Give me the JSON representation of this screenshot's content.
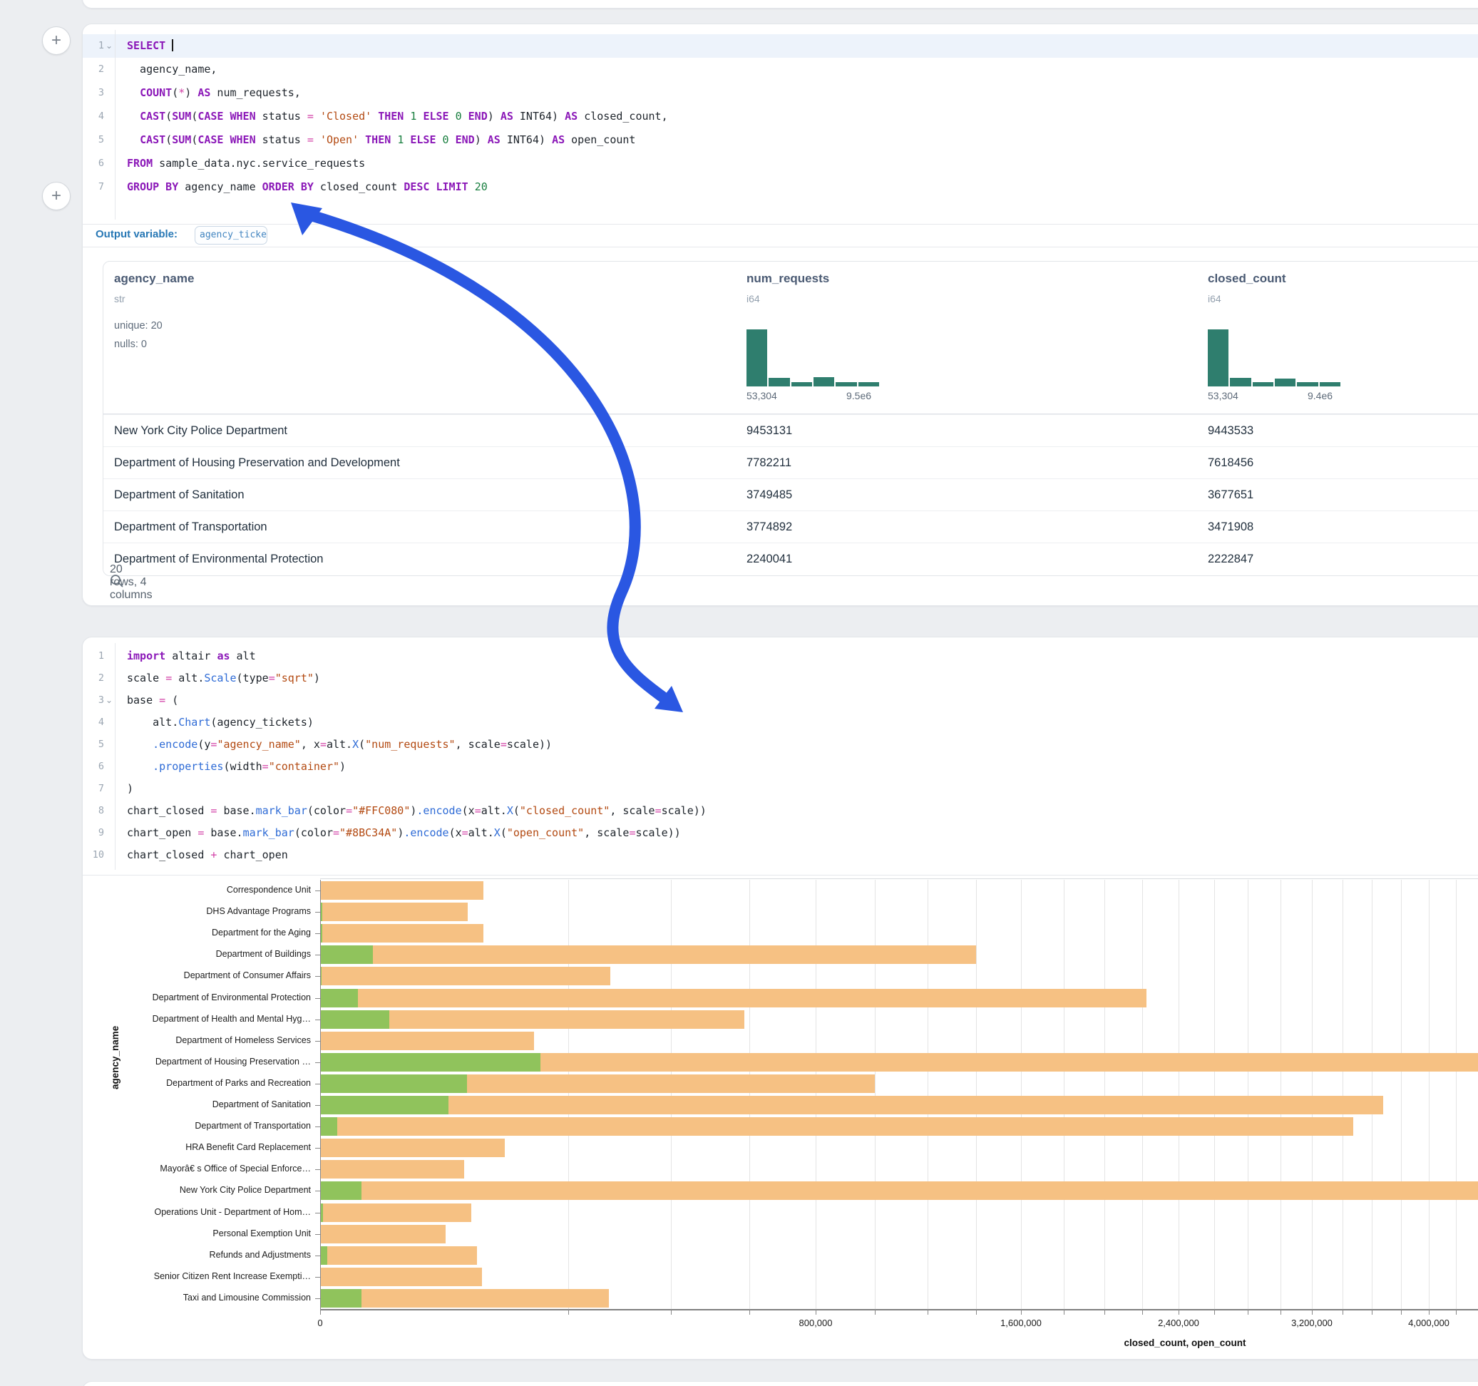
{
  "colors": {
    "closed_bar": "#F6C183",
    "open_bar": "#90C35C",
    "histogram": "#2F7E6E",
    "arrow": "#2A57E2",
    "keyword": "#8B18B8",
    "string": "#B34A12",
    "number": "#177E3E",
    "method": "#2E6BD6",
    "operator": "#D23FA6"
  },
  "sql_cell": {
    "add_cell_button": "+",
    "output_variable_label": "Output variable:",
    "output_variable": "agency_tickets",
    "lines": [
      {
        "n": "1",
        "chev": true,
        "active": true,
        "cursor": true,
        "tokens": [
          [
            "kw",
            "SELECT"
          ],
          [
            "t",
            " "
          ]
        ]
      },
      {
        "n": "2",
        "tokens": [
          [
            "t",
            "  agency_name,"
          ]
        ]
      },
      {
        "n": "3",
        "tokens": [
          [
            "t",
            "  "
          ],
          [
            "kw",
            "COUNT"
          ],
          [
            "t",
            "("
          ],
          [
            "op",
            "*"
          ],
          [
            "t",
            ") "
          ],
          [
            "kw",
            "AS"
          ],
          [
            "t",
            " num_requests,"
          ]
        ]
      },
      {
        "n": "4",
        "tokens": [
          [
            "t",
            "  "
          ],
          [
            "kw",
            "CAST"
          ],
          [
            "t",
            "("
          ],
          [
            "kw",
            "SUM"
          ],
          [
            "t",
            "("
          ],
          [
            "kw",
            "CASE"
          ],
          [
            "t",
            " "
          ],
          [
            "kw",
            "WHEN"
          ],
          [
            "t",
            " status "
          ],
          [
            "op",
            "="
          ],
          [
            "t",
            " "
          ],
          [
            "str",
            "'Closed'"
          ],
          [
            "t",
            " "
          ],
          [
            "kw",
            "THEN"
          ],
          [
            "t",
            " "
          ],
          [
            "num",
            "1"
          ],
          [
            "t",
            " "
          ],
          [
            "kw",
            "ELSE"
          ],
          [
            "t",
            " "
          ],
          [
            "num",
            "0"
          ],
          [
            "t",
            " "
          ],
          [
            "kw",
            "END"
          ],
          [
            "t",
            ") "
          ],
          [
            "kw",
            "AS"
          ],
          [
            "t",
            " INT64) "
          ],
          [
            "kw",
            "AS"
          ],
          [
            "t",
            " closed_count,"
          ]
        ]
      },
      {
        "n": "5",
        "tokens": [
          [
            "t",
            "  "
          ],
          [
            "kw",
            "CAST"
          ],
          [
            "t",
            "("
          ],
          [
            "kw",
            "SUM"
          ],
          [
            "t",
            "("
          ],
          [
            "kw",
            "CASE"
          ],
          [
            "t",
            " "
          ],
          [
            "kw",
            "WHEN"
          ],
          [
            "t",
            " status "
          ],
          [
            "op",
            "="
          ],
          [
            "t",
            " "
          ],
          [
            "str",
            "'Open'"
          ],
          [
            "t",
            " "
          ],
          [
            "kw",
            "THEN"
          ],
          [
            "t",
            " "
          ],
          [
            "num",
            "1"
          ],
          [
            "t",
            " "
          ],
          [
            "kw",
            "ELSE"
          ],
          [
            "t",
            " "
          ],
          [
            "num",
            "0"
          ],
          [
            "t",
            " "
          ],
          [
            "kw",
            "END"
          ],
          [
            "t",
            ") "
          ],
          [
            "kw",
            "AS"
          ],
          [
            "t",
            " INT64) "
          ],
          [
            "kw",
            "AS"
          ],
          [
            "t",
            " open_count"
          ]
        ]
      },
      {
        "n": "6",
        "tokens": [
          [
            "kw",
            "FROM"
          ],
          [
            "t",
            " sample_data.nyc.service_requests"
          ]
        ]
      },
      {
        "n": "7",
        "tokens": [
          [
            "kw",
            "GROUP BY"
          ],
          [
            "t",
            " agency_name "
          ],
          [
            "kw",
            "ORDER BY"
          ],
          [
            "t",
            " closed_count "
          ],
          [
            "kw",
            "DESC"
          ],
          [
            "t",
            " "
          ],
          [
            "kw",
            "LIMIT"
          ],
          [
            "t",
            " "
          ],
          [
            "num",
            "20"
          ]
        ]
      }
    ]
  },
  "table": {
    "columns": [
      {
        "name": "agency_name",
        "type": "str",
        "stats": [
          "unique: 20",
          "nulls: 0"
        ]
      },
      {
        "name": "num_requests",
        "type": "i64",
        "hist": {
          "bins": [
            1,
            0.15,
            0.08,
            0.16,
            0.08,
            0.08
          ],
          "min_label": "53,304",
          "max_label": "9.5e6"
        }
      },
      {
        "name": "closed_count",
        "type": "i64",
        "hist": {
          "bins": [
            1,
            0.15,
            0.08,
            0.14,
            0.07,
            0.07
          ],
          "min_label": "53,304",
          "max_label": "9.4e6"
        }
      }
    ],
    "rows": [
      {
        "agency_name": "New York City Police Department",
        "num_requests": "9453131",
        "closed_count": "9443533"
      },
      {
        "agency_name": "Department of Housing Preservation and Development",
        "num_requests": "7782211",
        "closed_count": "7618456"
      },
      {
        "agency_name": "Department of Sanitation",
        "num_requests": "3749485",
        "closed_count": "3677651"
      },
      {
        "agency_name": "Department of Transportation",
        "num_requests": "3774892",
        "closed_count": "3471908"
      },
      {
        "agency_name": "Department of Environmental Protection",
        "num_requests": "2240041",
        "closed_count": "2222847"
      }
    ],
    "footer": "20 rows, 4 columns"
  },
  "python_cell": {
    "add_cell_button": "+",
    "lines": [
      {
        "n": "1",
        "tokens": [
          [
            "kw",
            "import"
          ],
          [
            "t",
            " altair "
          ],
          [
            "kw",
            "as"
          ],
          [
            "t",
            " alt"
          ]
        ]
      },
      {
        "n": "2",
        "tokens": [
          [
            "t",
            "scale "
          ],
          [
            "op",
            "="
          ],
          [
            "t",
            " alt."
          ],
          [
            "fn",
            "Scale"
          ],
          [
            "t",
            "(type"
          ],
          [
            "op",
            "="
          ],
          [
            "str",
            "\"sqrt\""
          ],
          [
            "t",
            ")"
          ]
        ]
      },
      {
        "n": "3",
        "chev": true,
        "tokens": [
          [
            "t",
            "base "
          ],
          [
            "op",
            "="
          ],
          [
            "t",
            " ("
          ]
        ]
      },
      {
        "n": "4",
        "tokens": [
          [
            "t",
            "    alt."
          ],
          [
            "fn",
            "Chart"
          ],
          [
            "t",
            "(agency_tickets)"
          ]
        ]
      },
      {
        "n": "5",
        "tokens": [
          [
            "t",
            "    "
          ],
          [
            "fn",
            ".encode"
          ],
          [
            "t",
            "(y"
          ],
          [
            "op",
            "="
          ],
          [
            "str",
            "\"agency_name\""
          ],
          [
            "t",
            ", x"
          ],
          [
            "op",
            "="
          ],
          [
            "t",
            "alt."
          ],
          [
            "fn",
            "X"
          ],
          [
            "t",
            "("
          ],
          [
            "str",
            "\"num_requests\""
          ],
          [
            "t",
            ", scale"
          ],
          [
            "op",
            "="
          ],
          [
            "t",
            "scale))"
          ]
        ]
      },
      {
        "n": "6",
        "tokens": [
          [
            "t",
            "    "
          ],
          [
            "fn",
            ".properties"
          ],
          [
            "t",
            "(width"
          ],
          [
            "op",
            "="
          ],
          [
            "str",
            "\"container\""
          ],
          [
            "t",
            ")"
          ]
        ]
      },
      {
        "n": "7",
        "tokens": [
          [
            "t",
            ")"
          ]
        ]
      },
      {
        "n": "8",
        "tokens": [
          [
            "t",
            "chart_closed "
          ],
          [
            "op",
            "="
          ],
          [
            "t",
            " base."
          ],
          [
            "fn",
            "mark_bar"
          ],
          [
            "t",
            "(color"
          ],
          [
            "op",
            "="
          ],
          [
            "str",
            "\"#FFC080\""
          ],
          [
            "t",
            ")"
          ],
          [
            "fn",
            ".encode"
          ],
          [
            "t",
            "(x"
          ],
          [
            "op",
            "="
          ],
          [
            "t",
            "alt."
          ],
          [
            "fn",
            "X"
          ],
          [
            "t",
            "("
          ],
          [
            "str",
            "\"closed_count\""
          ],
          [
            "t",
            ", scale"
          ],
          [
            "op",
            "="
          ],
          [
            "t",
            "scale))"
          ]
        ]
      },
      {
        "n": "9",
        "tokens": [
          [
            "t",
            "chart_open "
          ],
          [
            "op",
            "="
          ],
          [
            "t",
            " base."
          ],
          [
            "fn",
            "mark_bar"
          ],
          [
            "t",
            "(color"
          ],
          [
            "op",
            "="
          ],
          [
            "str",
            "\"#8BC34A\""
          ],
          [
            "t",
            ")"
          ],
          [
            "fn",
            ".encode"
          ],
          [
            "t",
            "(x"
          ],
          [
            "op",
            "="
          ],
          [
            "t",
            "alt."
          ],
          [
            "fn",
            "X"
          ],
          [
            "t",
            "("
          ],
          [
            "str",
            "\"open_count\""
          ],
          [
            "t",
            ", scale"
          ],
          [
            "op",
            "="
          ],
          [
            "t",
            "scale))"
          ]
        ]
      },
      {
        "n": "10",
        "tokens": [
          [
            "t",
            "chart_closed "
          ],
          [
            "op",
            "+"
          ],
          [
            "t",
            " chart_open"
          ]
        ]
      }
    ]
  },
  "chart_data": {
    "type": "bar",
    "orientation": "horizontal",
    "x_scale": "sqrt",
    "title": "",
    "xlabel": "closed_count, open_count",
    "ylabel": "agency_name",
    "grid": true,
    "grid_step": 200000,
    "label_step": 800000,
    "x_tick_labels": [
      "0",
      "800,000",
      "1,600,000",
      "2,400,000",
      "3,200,000",
      "4,000,000"
    ],
    "categories": [
      "Correspondence Unit",
      "DHS Advantage Programs",
      "Department for the Aging",
      "Department of Buildings",
      "Department of Consumer Affairs",
      "Department of Environmental Protection",
      "Department of Health and Mental Hyg…",
      "Department of Homeless Services",
      "Department of Housing Preservation …",
      "Department of Parks and Recreation",
      "Department of Sanitation",
      "Department of Transportation",
      "HRA Benefit Card Replacement",
      "Mayorâ€ s Office of Special Enforce…",
      "New York City Police Department",
      "Operations Unit - Department of Hom…",
      "Personal Exemption Unit",
      "Refunds and Adjustments",
      "Senior Citizen Rent Increase Exempti…",
      "Taxi and Limousine Commission"
    ],
    "series": [
      {
        "name": "closed_count",
        "color": "#F6C183",
        "values": [
          87000,
          71000,
          87000,
          1400000,
          274000,
          2222847,
          586000,
          149000,
          7618456,
          1000000,
          3677651,
          3471908,
          111000,
          67600,
          9443533,
          74300,
          51400,
          80000,
          85100,
          271000
        ]
      },
      {
        "name": "open_count",
        "color": "#90C35C",
        "values": [
          0,
          15,
          15,
          9150,
          6,
          4700,
          15600,
          0,
          158000,
          70200,
          53700,
          930,
          0,
          0,
          5650,
          26,
          0,
          162,
          0,
          5650
        ]
      }
    ]
  }
}
